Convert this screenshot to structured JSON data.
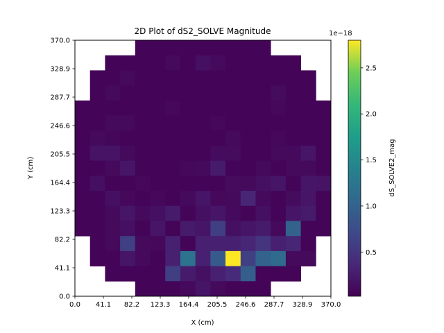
{
  "chart_data": {
    "type": "heatmap",
    "title": "2D Plot of dS2_SOLVE Magnitude",
    "xlabel": "X (cm)",
    "ylabel": "Y (cm)",
    "xlim": [
      0.0,
      370.0
    ],
    "ylim": [
      0.0,
      370.0
    ],
    "x_ticks": [
      "0.0",
      "41.1",
      "82.2",
      "123.3",
      "164.4",
      "205.5",
      "246.6",
      "287.7",
      "328.9",
      "370.0"
    ],
    "y_ticks": [
      "0.0",
      "41.1",
      "82.2",
      "123.3",
      "164.4",
      "205.5",
      "246.6",
      "287.7",
      "328.9",
      "370.0"
    ],
    "grid_size": 17,
    "colorbar": {
      "label": "dS_SOLVE2_mag",
      "scale_label": "1e−18",
      "ticks": [
        "0.5",
        "1.0",
        "1.5",
        "2.0",
        "2.5"
      ],
      "tick_values": [
        0.5,
        1.0,
        1.5,
        2.0,
        2.5
      ],
      "min": 0.02,
      "max": 2.8,
      "colormap": "viridis"
    },
    "grid": false,
    "values_rows_top_to_bottom": [
      [
        null,
        null,
        null,
        null,
        0.05,
        0.05,
        0.05,
        0.05,
        0.05,
        0.05,
        0.05,
        0.05,
        0.05,
        null,
        null,
        null,
        null
      ],
      [
        null,
        null,
        0.05,
        0.05,
        0.05,
        0.05,
        0.1,
        0.06,
        0.15,
        0.1,
        0.05,
        0.05,
        0.05,
        0.05,
        0.05,
        null,
        null
      ],
      [
        null,
        0.05,
        0.05,
        0.1,
        0.05,
        0.05,
        0.05,
        0.05,
        0.05,
        0.05,
        0.05,
        0.05,
        0.05,
        0.05,
        0.05,
        0.05,
        null
      ],
      [
        null,
        0.05,
        0.1,
        0.06,
        0.05,
        0.05,
        0.05,
        0.05,
        0.05,
        0.05,
        0.05,
        0.06,
        0.05,
        0.12,
        0.05,
        0.05,
        null
      ],
      [
        0.05,
        0.05,
        0.05,
        0.05,
        0.05,
        0.06,
        0.08,
        0.05,
        0.05,
        0.05,
        0.05,
        0.05,
        0.05,
        0.08,
        0.06,
        0.05,
        0.05
      ],
      [
        0.05,
        0.05,
        0.1,
        0.1,
        0.06,
        0.05,
        0.05,
        0.05,
        0.05,
        0.08,
        0.05,
        0.05,
        0.05,
        0.05,
        0.05,
        0.05,
        0.05
      ],
      [
        0.05,
        0.1,
        0.07,
        0.05,
        0.05,
        0.05,
        0.05,
        0.05,
        0.05,
        0.05,
        0.1,
        0.05,
        0.05,
        0.08,
        0.05,
        0.05,
        0.05
      ],
      [
        0.05,
        0.18,
        0.18,
        0.1,
        0.05,
        0.05,
        0.05,
        0.05,
        0.06,
        0.12,
        0.12,
        0.05,
        0.05,
        0.1,
        0.1,
        0.2,
        0.05
      ],
      [
        0.05,
        0.05,
        0.1,
        0.2,
        0.05,
        0.05,
        0.05,
        0.08,
        0.1,
        0.25,
        0.05,
        0.05,
        0.1,
        0.05,
        0.1,
        0.1,
        0.05
      ],
      [
        0.05,
        0.15,
        0.05,
        0.05,
        0.08,
        0.05,
        0.06,
        0.05,
        0.05,
        0.05,
        0.12,
        0.1,
        0.15,
        0.2,
        0.05,
        0.2,
        0.18
      ],
      [
        0.05,
        0.05,
        0.15,
        0.08,
        0.05,
        0.08,
        0.05,
        0.1,
        0.2,
        0.08,
        0.1,
        0.35,
        0.1,
        0.05,
        0.12,
        0.2,
        0.05
      ],
      [
        0.05,
        0.05,
        0.1,
        0.2,
        0.1,
        0.15,
        0.25,
        0.05,
        0.15,
        0.2,
        0.1,
        0.05,
        0.15,
        0.05,
        0.2,
        0.25,
        0.05
      ],
      [
        0.05,
        0.05,
        0.1,
        0.15,
        0.05,
        0.2,
        0.05,
        0.25,
        0.2,
        0.6,
        0.15,
        0.2,
        0.25,
        0.1,
        1.0,
        0.05,
        0.05
      ],
      [
        null,
        0.05,
        0.1,
        0.6,
        0.1,
        0.08,
        0.3,
        0.05,
        0.3,
        0.3,
        0.3,
        0.35,
        0.5,
        0.3,
        0.35,
        0.05,
        null
      ],
      [
        null,
        0.05,
        0.05,
        0.2,
        0.1,
        0.05,
        0.3,
        1.2,
        0.3,
        0.9,
        2.8,
        0.6,
        1.0,
        1.1,
        0.1,
        0.1,
        null
      ],
      [
        null,
        null,
        0.05,
        0.05,
        0.05,
        0.05,
        0.6,
        0.25,
        0.15,
        0.3,
        0.4,
        0.95,
        0.05,
        0.05,
        0.05,
        null,
        null
      ],
      [
        null,
        null,
        null,
        null,
        0.05,
        0.05,
        0.05,
        0.1,
        0.2,
        0.1,
        0.05,
        0.05,
        0.05,
        null,
        null,
        null,
        null
      ]
    ]
  }
}
